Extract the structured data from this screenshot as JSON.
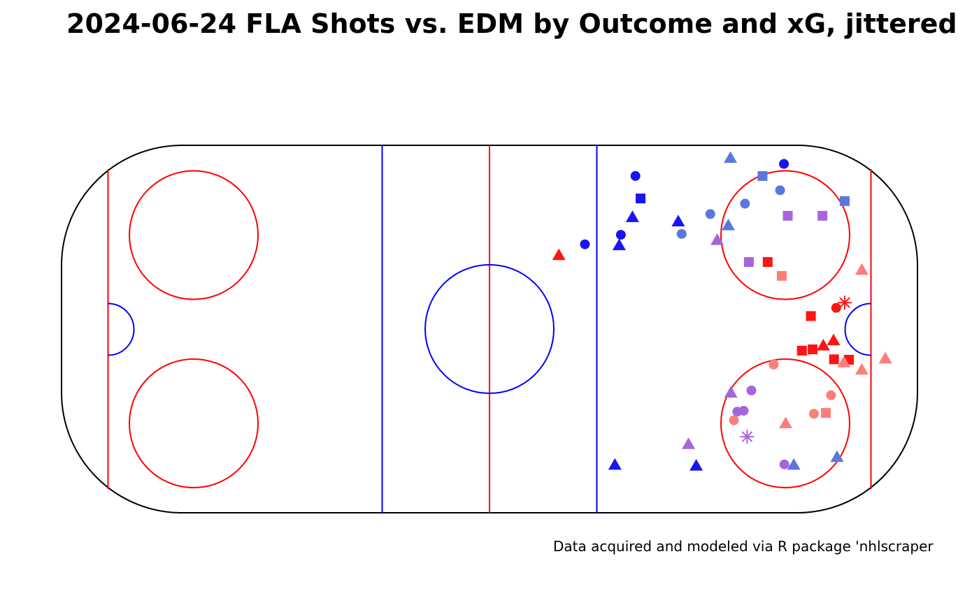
{
  "chart": {
    "title": "2024-06-24 FLA Shots vs. EDM by Outcome and xG, jittered",
    "caption": "Data acquired and modeled via R package 'nhlscraper"
  },
  "colors": {
    "rink_outline": "#000000",
    "red_line": "#ff0000",
    "blue_line": "#0000ff",
    "series": {
      "blue_dark": "#1a14f0",
      "blue_light": "#5a78dc",
      "purple": "#a566dc",
      "red_dark": "#ff1414",
      "red_light": "#fa7f7a"
    }
  },
  "chart_data": {
    "type": "scatter",
    "title": "2024-06-24 FLA Shots vs. EDM by Outcome and xG, jittered",
    "xlim": [
      -100,
      100
    ],
    "ylim": [
      -42.5,
      42.5
    ],
    "grid": false,
    "legend": "none",
    "points": [
      {
        "x": 34.1,
        "y": 35.4,
        "shape": "circle",
        "color": "blue_dark"
      },
      {
        "x": 35.3,
        "y": 30.2,
        "shape": "square",
        "color": "blue_dark"
      },
      {
        "x": 33.4,
        "y": 25.9,
        "shape": "triangle",
        "color": "blue_dark"
      },
      {
        "x": 30.7,
        "y": 21.8,
        "shape": "circle",
        "color": "blue_dark"
      },
      {
        "x": 22.3,
        "y": 19.6,
        "shape": "circle",
        "color": "blue_dark"
      },
      {
        "x": 30.3,
        "y": 19.4,
        "shape": "triangle",
        "color": "blue_dark"
      },
      {
        "x": 44.1,
        "y": 24.9,
        "shape": "triangle",
        "color": "blue_dark"
      },
      {
        "x": 68.8,
        "y": 38.2,
        "shape": "circle",
        "color": "blue_dark"
      },
      {
        "x": 16.2,
        "y": 17.1,
        "shape": "triangle",
        "color": "red_dark"
      },
      {
        "x": 56.3,
        "y": 39.6,
        "shape": "triangle",
        "color": "blue_light"
      },
      {
        "x": 63.8,
        "y": 35.4,
        "shape": "square",
        "color": "blue_light"
      },
      {
        "x": 67.9,
        "y": 32.1,
        "shape": "circle",
        "color": "blue_light"
      },
      {
        "x": 59.7,
        "y": 29.0,
        "shape": "circle",
        "color": "blue_light"
      },
      {
        "x": 51.6,
        "y": 26.6,
        "shape": "circle",
        "color": "blue_light"
      },
      {
        "x": 44.9,
        "y": 22.0,
        "shape": "circle",
        "color": "blue_light"
      },
      {
        "x": 55.8,
        "y": 24.0,
        "shape": "triangle",
        "color": "blue_light"
      },
      {
        "x": 83.0,
        "y": 29.6,
        "shape": "square",
        "color": "blue_light"
      },
      {
        "x": 69.7,
        "y": 26.2,
        "shape": "square",
        "color": "purple"
      },
      {
        "x": 77.8,
        "y": 26.2,
        "shape": "square",
        "color": "purple"
      },
      {
        "x": 53.2,
        "y": 20.6,
        "shape": "triangle",
        "color": "purple"
      },
      {
        "x": 60.6,
        "y": 15.5,
        "shape": "square",
        "color": "purple"
      },
      {
        "x": 65.0,
        "y": 15.5,
        "shape": "square",
        "color": "red_dark"
      },
      {
        "x": 68.3,
        "y": 12.3,
        "shape": "square",
        "color": "red_light"
      },
      {
        "x": 87.0,
        "y": 13.7,
        "shape": "triangle",
        "color": "red_light"
      },
      {
        "x": 83.0,
        "y": 6.1,
        "shape": "star",
        "color": "red_dark"
      },
      {
        "x": 81.0,
        "y": 4.9,
        "shape": "circle",
        "color": "red_dark"
      },
      {
        "x": 75.1,
        "y": 3.0,
        "shape": "square",
        "color": "red_dark"
      },
      {
        "x": 80.4,
        "y": -2.6,
        "shape": "triangle",
        "color": "red_dark"
      },
      {
        "x": 78.0,
        "y": -3.8,
        "shape": "triangle",
        "color": "red_dark"
      },
      {
        "x": 75.5,
        "y": -4.7,
        "shape": "square",
        "color": "red_dark"
      },
      {
        "x": 73.0,
        "y": -5.0,
        "shape": "square",
        "color": "red_dark"
      },
      {
        "x": 80.5,
        "y": -7.0,
        "shape": "square",
        "color": "red_dark"
      },
      {
        "x": 84.0,
        "y": -7.1,
        "shape": "square",
        "color": "red_dark"
      },
      {
        "x": 82.8,
        "y": -7.7,
        "shape": "triangle",
        "color": "red_light"
      },
      {
        "x": 92.5,
        "y": -6.8,
        "shape": "triangle",
        "color": "red_light"
      },
      {
        "x": 87.0,
        "y": -9.4,
        "shape": "triangle",
        "color": "red_light"
      },
      {
        "x": 66.4,
        "y": -8.2,
        "shape": "circle",
        "color": "red_light"
      },
      {
        "x": 61.2,
        "y": -14.2,
        "shape": "circle",
        "color": "purple"
      },
      {
        "x": 56.4,
        "y": -14.7,
        "shape": "triangle",
        "color": "purple"
      },
      {
        "x": 79.8,
        "y": -15.3,
        "shape": "circle",
        "color": "red_light"
      },
      {
        "x": 59.4,
        "y": -18.9,
        "shape": "circle",
        "color": "purple"
      },
      {
        "x": 57.9,
        "y": -19.1,
        "shape": "circle",
        "color": "purple"
      },
      {
        "x": 57.1,
        "y": -21.1,
        "shape": "circle",
        "color": "red_light"
      },
      {
        "x": 75.8,
        "y": -19.6,
        "shape": "circle",
        "color": "red_light"
      },
      {
        "x": 78.6,
        "y": -19.4,
        "shape": "square",
        "color": "red_light"
      },
      {
        "x": 69.2,
        "y": -21.8,
        "shape": "triangle",
        "color": "red_light"
      },
      {
        "x": 60.2,
        "y": -24.9,
        "shape": "star",
        "color": "purple"
      },
      {
        "x": 46.5,
        "y": -26.6,
        "shape": "triangle",
        "color": "purple"
      },
      {
        "x": 68.9,
        "y": -31.3,
        "shape": "circle",
        "color": "purple"
      },
      {
        "x": 71.1,
        "y": -31.4,
        "shape": "triangle",
        "color": "blue_light"
      },
      {
        "x": 81.2,
        "y": -29.6,
        "shape": "triangle",
        "color": "blue_light"
      },
      {
        "x": 29.3,
        "y": -31.4,
        "shape": "triangle",
        "color": "blue_dark"
      },
      {
        "x": 48.3,
        "y": -31.6,
        "shape": "triangle",
        "color": "blue_dark"
      }
    ]
  }
}
